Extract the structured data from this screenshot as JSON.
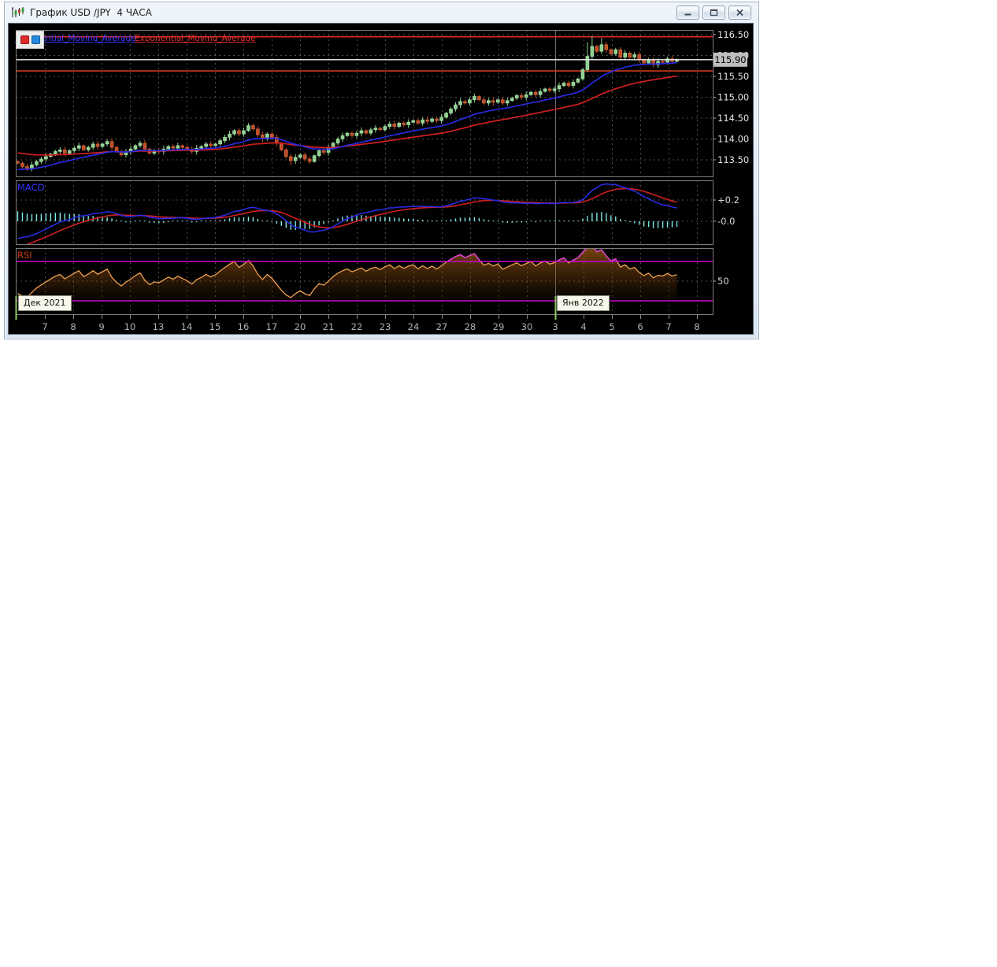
{
  "window": {
    "title": "График USD /JPY  4 ЧАСА",
    "icon": "candlestick-chart-icon",
    "buttons": {
      "minimize": "minimize",
      "maximize": "maximize",
      "close": "close"
    }
  },
  "legend": {
    "fast_label": "Exponential_Moving_Average",
    "slow_label": "Exponential_Moving_Average",
    "swatch_red": "#e02828",
    "swatch_blue": "#2387dd"
  },
  "chart_data": {
    "type": "candlestick",
    "symbol": "USD/JPY",
    "timeframe": "4 HOURS",
    "x_labels": [
      "7",
      "8",
      "9",
      "10",
      "13",
      "14",
      "15",
      "16",
      "17",
      "20",
      "21",
      "22",
      "23",
      "24",
      "27",
      "28",
      "29",
      "30",
      "3",
      "4",
      "5",
      "6",
      "7",
      "8"
    ],
    "month_markers": [
      {
        "label": "Дек 2021",
        "x": 20
      },
      {
        "label": "Янв 2022",
        "x": 705
      }
    ],
    "panels": {
      "price": {
        "y_ticks": [
          "116.50",
          "116.00",
          "115.50",
          "115.00",
          "114.50",
          "114.00",
          "113.50"
        ],
        "y_tick_values": [
          116.5,
          116.0,
          115.5,
          115.0,
          114.5,
          114.0,
          113.5
        ],
        "current_price": "115.90",
        "current_price_value": 115.9,
        "level_lines": [
          {
            "value": 116.45,
            "color": "#e02a2a"
          },
          {
            "value": 115.63,
            "color": "#cc3a1a"
          }
        ],
        "closes": [
          113.42,
          113.34,
          113.3,
          113.38,
          113.46,
          113.52,
          113.58,
          113.64,
          113.7,
          113.74,
          113.66,
          113.72,
          113.78,
          113.84,
          113.74,
          113.8,
          113.88,
          113.82,
          113.88,
          113.94,
          113.8,
          113.7,
          113.62,
          113.7,
          113.76,
          113.84,
          113.9,
          113.76,
          113.66,
          113.72,
          113.7,
          113.76,
          113.82,
          113.78,
          113.84,
          113.8,
          113.76,
          113.7,
          113.78,
          113.82,
          113.88,
          113.84,
          113.88,
          113.96,
          114.04,
          114.12,
          114.2,
          114.12,
          114.2,
          114.32,
          114.24,
          114.1,
          114.0,
          114.12,
          114.04,
          113.9,
          113.74,
          113.58,
          113.48,
          113.56,
          113.62,
          113.52,
          113.46,
          113.6,
          113.72,
          113.68,
          113.78,
          113.9,
          114.0,
          114.08,
          114.14,
          114.08,
          114.14,
          114.2,
          114.14,
          114.22,
          114.26,
          114.22,
          114.3,
          114.36,
          114.3,
          114.38,
          114.34,
          114.4,
          114.44,
          114.38,
          114.46,
          114.42,
          114.48,
          114.44,
          114.52,
          114.62,
          114.72,
          114.82,
          114.9,
          114.86,
          114.94,
          115.02,
          114.94,
          114.86,
          114.92,
          114.88,
          114.94,
          114.86,
          114.92,
          114.98,
          115.04,
          115.0,
          115.06,
          115.12,
          115.06,
          115.14,
          115.2,
          115.16,
          115.2,
          115.28,
          115.34,
          115.28,
          115.36,
          115.44,
          115.66,
          115.98,
          116.22,
          116.1,
          116.26,
          116.14,
          116.04,
          116.14,
          115.96,
          116.06,
          115.96,
          116.02,
          115.9,
          115.82,
          115.9,
          115.78,
          115.86,
          115.84,
          115.92,
          115.86,
          115.9
        ],
        "wick_overrides": [
          {
            "i": 2,
            "low": 113.24
          },
          {
            "i": 49,
            "high": 114.38
          },
          {
            "i": 58,
            "low": 113.37
          },
          {
            "i": 62,
            "low": 113.4
          },
          {
            "i": 121,
            "high": 116.32
          },
          {
            "i": 122,
            "high": 116.46
          },
          {
            "i": 124,
            "high": 116.42
          }
        ],
        "ema_fast": {
          "period": 20,
          "seed": 113.25,
          "color": "#2a2ae0"
        },
        "ema_slow": {
          "period": 45,
          "seed": 113.68,
          "color": "#d02020"
        },
        "up_color": "#8fd08f",
        "up_stroke": "#b2e6b2",
        "down_color": "#bf4f28",
        "down_stroke": "#d46a3a"
      },
      "macd": {
        "label": "MACD",
        "label_color": "#3535ff",
        "ticks": [
          "+0.2",
          "-0.0"
        ],
        "tick_values": [
          0.2,
          0.0
        ],
        "fast": 12,
        "slow": 26,
        "signal": 9,
        "seeds": {
          "fast": 113.36,
          "slow": 113.54,
          "signal": -0.28
        },
        "macd_color": "#2a2ae0",
        "signal_color": "#d02020",
        "hist_color": "#7fe6e6"
      },
      "rsi": {
        "label": "RSI",
        "label_color": "#cc3a1a",
        "period": 14,
        "seed_gain": 0.03,
        "seed_loss": 0.05,
        "levels": [
          70,
          30
        ],
        "mid": 50,
        "mid_label": "50",
        "line_color": "#f0a050",
        "over_color": "#e040e0",
        "band_color": "#cf00cf"
      }
    }
  }
}
